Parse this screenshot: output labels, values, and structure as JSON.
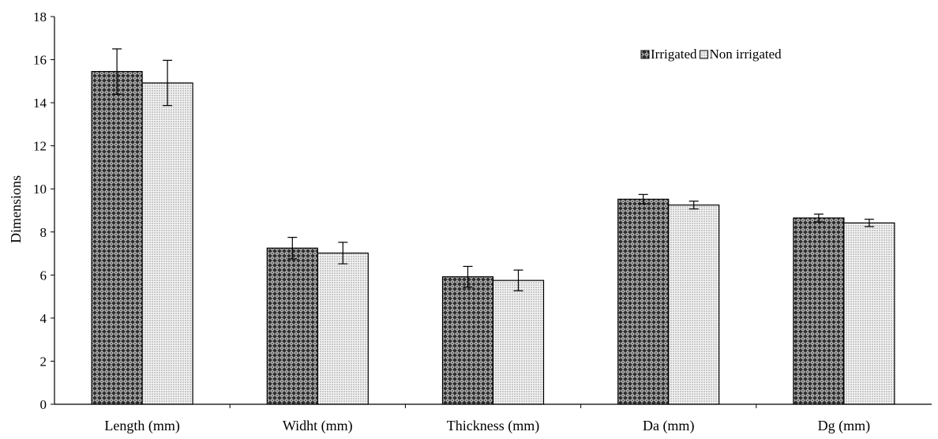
{
  "chart_data": {
    "type": "bar",
    "title": "",
    "xlabel": "",
    "ylabel": "Dimensions",
    "ylim": [
      0,
      18
    ],
    "yticks": [
      0,
      2,
      4,
      6,
      8,
      10,
      12,
      14,
      16,
      18
    ],
    "categories": [
      "Length (mm)",
      "Widht (mm)",
      "Thickness (mm)",
      "Da (mm)",
      "Dg (mm)"
    ],
    "series": [
      {
        "name": "Irrigated",
        "pattern": "crosshatch-dark",
        "values": [
          15.45,
          7.25,
          5.92,
          9.52,
          8.65
        ],
        "errors": [
          1.05,
          0.5,
          0.48,
          0.22,
          0.18
        ]
      },
      {
        "name": "Non irrigated",
        "pattern": "dots-light",
        "values": [
          14.92,
          7.02,
          5.75,
          9.25,
          8.42
        ],
        "errors": [
          1.05,
          0.5,
          0.48,
          0.18,
          0.17
        ]
      }
    ],
    "grid": false,
    "legend_position": "top-right",
    "colors": {
      "axis": "#000000",
      "bar_border": "#000000",
      "irrigated_fill": "#3a3a3a",
      "non_irrigated_fill": "#e6e6e6"
    }
  }
}
